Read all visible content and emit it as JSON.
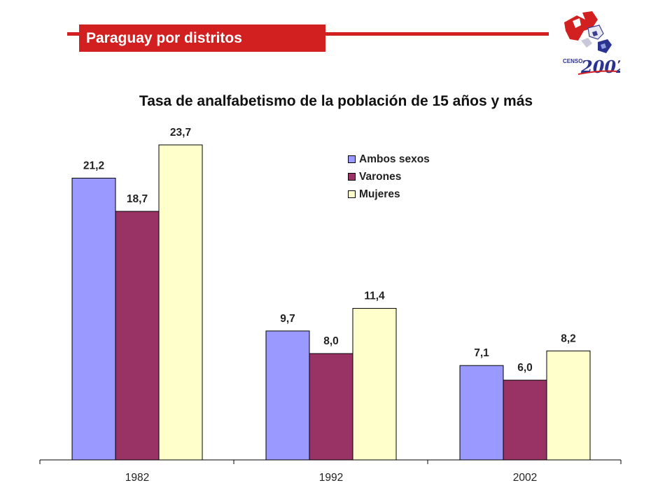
{
  "header": {
    "title": "Paraguay por distritos"
  },
  "logo": {
    "label": "CENSO",
    "year": "2002",
    "icon": "censo-2002-puzzle-map-logo"
  },
  "chart_data": {
    "type": "bar",
    "title": "Tasa de analfabetismo de la población de 15 años y más",
    "xlabel": "",
    "ylabel": "",
    "categories": [
      "1982",
      "1992",
      "2002"
    ],
    "series": [
      {
        "name": "Ambos sexos",
        "color": "#9999ff",
        "values": [
          21.2,
          9.7,
          7.1
        ],
        "labels": [
          "21,2",
          "9,7",
          "7,1"
        ]
      },
      {
        "name": "Varones",
        "color": "#993366",
        "values": [
          18.7,
          8.0,
          6.0
        ],
        "labels": [
          "18,7",
          "8,0",
          "6,0"
        ]
      },
      {
        "name": "Mujeres",
        "color": "#ffffcc",
        "values": [
          23.7,
          11.4,
          8.2
        ],
        "labels": [
          "23,7",
          "11,4",
          "8,2"
        ]
      }
    ],
    "ylim": [
      0,
      25
    ],
    "grid": false,
    "legend": "top-right"
  }
}
